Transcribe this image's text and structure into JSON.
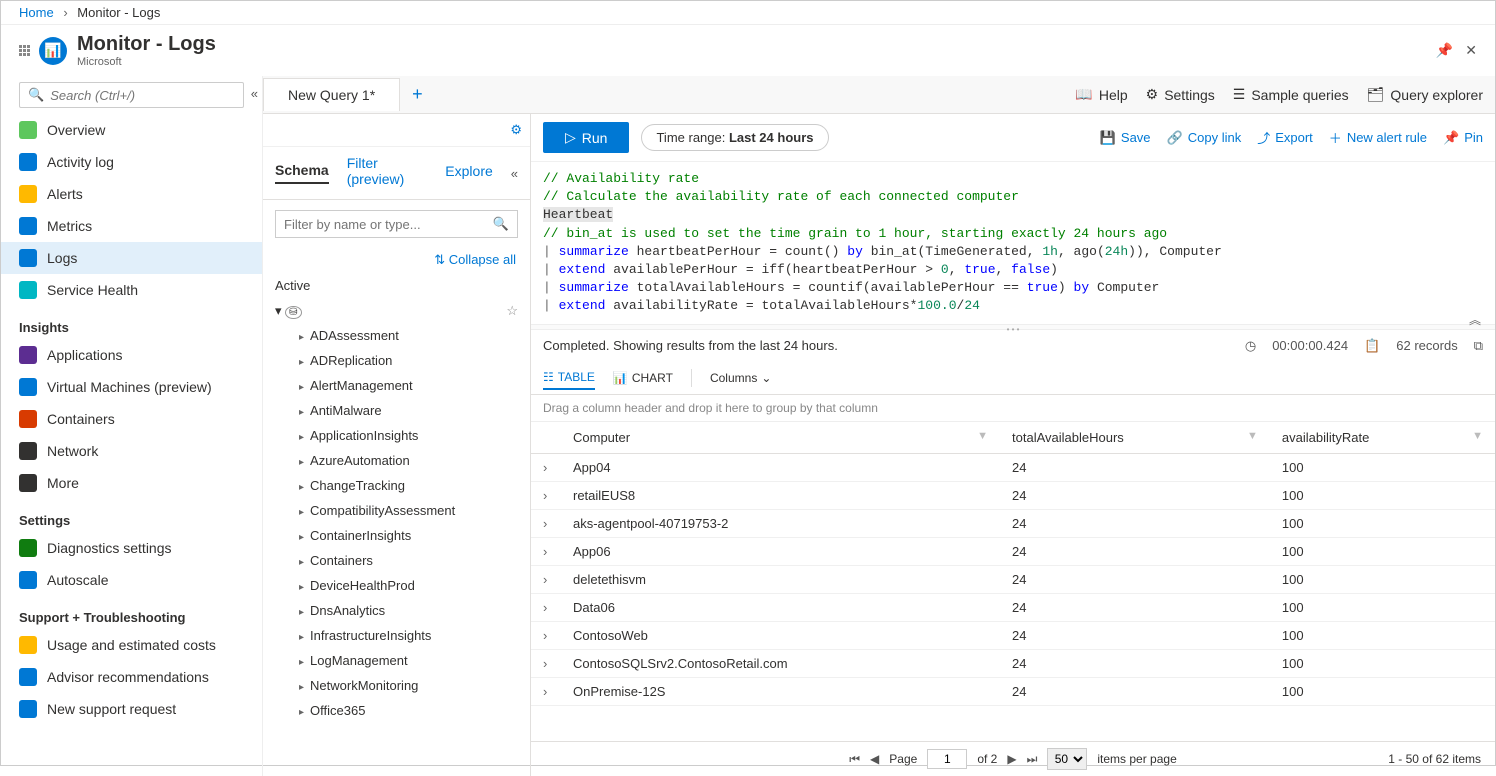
{
  "breadcrumb": {
    "home": "Home",
    "current": "Monitor - Logs"
  },
  "header": {
    "title": "Monitor - Logs",
    "subtitle": "Microsoft"
  },
  "leftnav": {
    "search_placeholder": "Search (Ctrl+/)",
    "items_general": [
      {
        "label": "Overview",
        "color": "#5ec75e"
      },
      {
        "label": "Activity log",
        "color": "#0078d4"
      },
      {
        "label": "Alerts",
        "color": "#ffb900"
      },
      {
        "label": "Metrics",
        "color": "#0078d4"
      },
      {
        "label": "Logs",
        "color": "#0078d4",
        "active": true
      },
      {
        "label": "Service Health",
        "color": "#00b7c3"
      }
    ],
    "section_insights": "Insights",
    "items_insights": [
      {
        "label": "Applications",
        "color": "#5c2d91"
      },
      {
        "label": "Virtual Machines (preview)",
        "color": "#0078d4"
      },
      {
        "label": "Containers",
        "color": "#d83b01"
      },
      {
        "label": "Network",
        "color": "#323130"
      },
      {
        "label": "More",
        "color": "#323130"
      }
    ],
    "section_settings": "Settings",
    "items_settings": [
      {
        "label": "Diagnostics settings",
        "color": "#107c10"
      },
      {
        "label": "Autoscale",
        "color": "#0078d4"
      }
    ],
    "section_support": "Support + Troubleshooting",
    "items_support": [
      {
        "label": "Usage and estimated costs",
        "color": "#ffb900"
      },
      {
        "label": "Advisor recommendations",
        "color": "#0078d4"
      },
      {
        "label": "New support request",
        "color": "#0078d4"
      }
    ]
  },
  "tabbar": {
    "tab_label": "New Query 1*",
    "links": {
      "help": "Help",
      "settings": "Settings",
      "sample": "Sample queries",
      "explorer": "Query explorer"
    }
  },
  "qtoolbar": {
    "run": "Run",
    "time_label": "Time range: ",
    "time_value": "Last 24 hours",
    "save": "Save",
    "copy": "Copy link",
    "export": "Export",
    "alert": "New alert rule",
    "pin": "Pin"
  },
  "schema": {
    "tabs": {
      "schema": "Schema",
      "filter": "Filter (preview)",
      "explore": "Explore"
    },
    "search_placeholder": "Filter by name or type...",
    "collapse": "Collapse all",
    "active_label": "Active",
    "nodes": [
      "ADAssessment",
      "ADReplication",
      "AlertManagement",
      "AntiMalware",
      "ApplicationInsights",
      "AzureAutomation",
      "ChangeTracking",
      "CompatibilityAssessment",
      "ContainerInsights",
      "Containers",
      "DeviceHealthProd",
      "DnsAnalytics",
      "InfrastructureInsights",
      "LogManagement",
      "NetworkMonitoring",
      "Office365"
    ]
  },
  "editor": {
    "l1": "// Availability rate",
    "l2": "// Calculate the availability rate of each connected computer",
    "l3": "Heartbeat",
    "l4": "// bin_at is used to set the time grain to 1 hour, starting exactly 24 hours ago",
    "l5_kw": "summarize",
    "l5_rest": " heartbeatPerHour = ",
    "l5_fn": "count",
    "l5_rest2": "() ",
    "l5_by": "by",
    "l5_rest3": " bin_at(TimeGenerated, ",
    "l5_n1": "1h",
    "l5_rest4": ", ago(",
    "l5_n2": "24h",
    "l5_rest5": ")), Computer",
    "l6_kw": "extend",
    "l6_rest": " availablePerHour = iff(heartbeatPerHour > ",
    "l6_n": "0",
    "l6_rest2": ", ",
    "l6_t": "true",
    "l6_rest3": ", ",
    "l6_f": "false",
    "l6_rest4": ")",
    "l7_kw": "summarize",
    "l7_rest": " totalAvailableHours = countif(availablePerHour == ",
    "l7_t": "true",
    "l7_rest2": ") ",
    "l7_by": "by",
    "l7_rest3": " Computer",
    "l8_kw": "extend",
    "l8_rest": " availabilityRate = totalAvailableHours*",
    "l8_n1": "100.0",
    "l8_slash": "/",
    "l8_n2": "24"
  },
  "results": {
    "status": "Completed. Showing results from the last 24 hours.",
    "duration": "00:00:00.424",
    "records": "62 records",
    "view_table": "TABLE",
    "view_chart": "CHART",
    "columns": "Columns",
    "drag_hint": "Drag a column header and drop it here to group by that column",
    "cols": [
      "Computer",
      "totalAvailableHours",
      "availabilityRate"
    ],
    "rows": [
      [
        "App04",
        "24",
        "100"
      ],
      [
        "retailEUS8",
        "24",
        "100"
      ],
      [
        "aks-agentpool-40719753-2",
        "24",
        "100"
      ],
      [
        "App06",
        "24",
        "100"
      ],
      [
        "deletethisvm",
        "24",
        "100"
      ],
      [
        "Data06",
        "24",
        "100"
      ],
      [
        "ContosoWeb",
        "24",
        "100"
      ],
      [
        "ContosoSQLSrv2.ContosoRetail.com",
        "24",
        "100"
      ],
      [
        "OnPremise-12S",
        "24",
        "100"
      ]
    ],
    "pager": {
      "page_label": "Page",
      "page": "1",
      "of": "of 2",
      "size": "50",
      "ipp": "items per page",
      "range": "1 - 50 of 62 items"
    }
  }
}
